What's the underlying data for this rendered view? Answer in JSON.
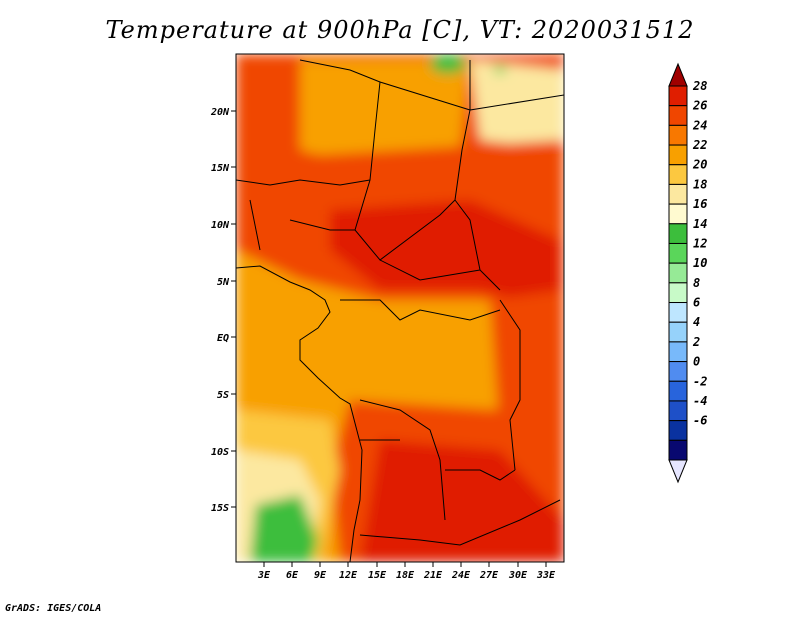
{
  "title": "Temperature at 900hPa [C], VT: 2020031512",
  "footer": "GrADS: IGES/COLA",
  "map": {
    "lat_labels": [
      "20N",
      "15N",
      "10N",
      "5N",
      "EQ",
      "5S",
      "10S",
      "15S"
    ],
    "lon_labels": [
      "3E",
      "6E",
      "9E",
      "12E",
      "15E",
      "18E",
      "21E",
      "24E",
      "27E",
      "30E",
      "33E"
    ]
  },
  "colorbar": {
    "labels": [
      "28",
      "26",
      "24",
      "22",
      "20",
      "18",
      "16",
      "14",
      "12",
      "10",
      "8",
      "6",
      "4",
      "2",
      "0",
      "-2",
      "-4",
      "-6"
    ],
    "colors": [
      "#A00000",
      "#E01E00",
      "#F04600",
      "#F87800",
      "#F8A000",
      "#FCC840",
      "#FCE8A0",
      "#FFFAD0",
      "#3CBE3C",
      "#5AD65A",
      "#96EA96",
      "#C8FAC8",
      "#BEE6FF",
      "#96D2FA",
      "#78B9FA",
      "#508CF0",
      "#2864DC",
      "#1E50C8",
      "#0A32A0",
      "#080870",
      "#E6E6FF"
    ]
  }
}
